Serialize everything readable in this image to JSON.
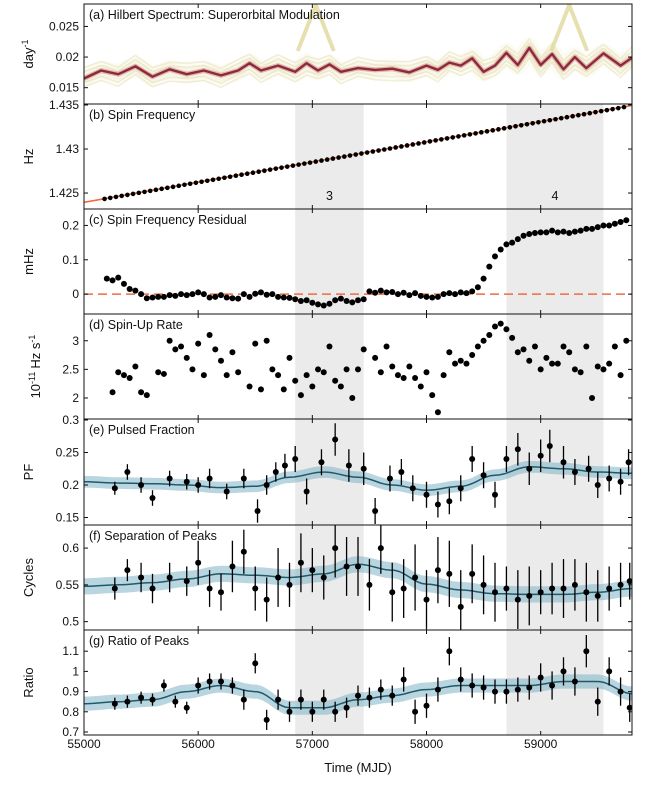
{
  "colors": {
    "background": "#ffffff",
    "shaded_interval": "#ebebeb",
    "points": "#000000",
    "fit_line": "#ef6c3f",
    "gp_line": "#1d5a6b",
    "gp_band": "#7fb3c6",
    "hilbert_track": "#8c2a3c",
    "hilbert_glow": "#e0d89a"
  },
  "chart_data": {
    "type": "scatter",
    "xlabel": "Time (MJD)",
    "xlim": [
      55000,
      59800
    ],
    "xticks": [
      "55000",
      "56000",
      "57000",
      "58000",
      "59000"
    ],
    "shaded_intervals": [
      {
        "label": "3",
        "range": [
          56850,
          57450
        ]
      },
      {
        "label": "4",
        "range": [
          58700,
          59550
        ]
      }
    ],
    "panels": [
      {
        "id": "a",
        "type": "heatmap",
        "title": "(a) Hilbert Spectrum: Superorbital Modulation",
        "ylabel": "day",
        "ylabel_sup": "-1",
        "ylim": [
          0.0125,
          0.0285
        ],
        "yticks": [
          "0.015",
          "0.02",
          "0.025"
        ],
        "track": {
          "x": [
            55000,
            55150,
            55300,
            55450,
            55600,
            55750,
            55900,
            56050,
            56200,
            56350,
            56450,
            56550,
            56700,
            56850,
            56950,
            57050,
            57150,
            57250,
            57400,
            57550,
            57700,
            57850,
            58000,
            58100,
            58200,
            58300,
            58400,
            58500,
            58600,
            58700,
            58800,
            58900,
            59000,
            59100,
            59200,
            59300,
            59400,
            59550,
            59700,
            59800
          ],
          "y": [
            0.0165,
            0.0178,
            0.0172,
            0.0185,
            0.0168,
            0.018,
            0.0172,
            0.0178,
            0.017,
            0.0178,
            0.019,
            0.0178,
            0.0186,
            0.0176,
            0.019,
            0.0178,
            0.0188,
            0.0176,
            0.0182,
            0.0179,
            0.0181,
            0.0175,
            0.0186,
            0.0179,
            0.0191,
            0.0186,
            0.0198,
            0.0176,
            0.0186,
            0.0207,
            0.0187,
            0.0215,
            0.0187,
            0.0205,
            0.018,
            0.02,
            0.0182,
            0.0206,
            0.0186,
            0.0199
          ]
        },
        "spikes": [
          {
            "x": 57030,
            "y": 0.0285
          },
          {
            "x": 59250,
            "y": 0.0285
          }
        ]
      },
      {
        "id": "b",
        "type": "scatter",
        "title": "(b) Spin Frequency",
        "ylabel": "Hz",
        "ylim": [
          1.4233,
          1.435
        ],
        "yticks": [
          "1.425",
          "1.43",
          "1.435"
        ],
        "fit_line": {
          "x": [
            55000,
            59800
          ],
          "y": [
            1.42395,
            1.43495
          ]
        },
        "x_start": 55180,
        "x_step": 50,
        "n_points": 92,
        "y_start": 1.42433,
        "slope_per_mjd": 2.2917e-06
      },
      {
        "id": "c",
        "type": "scatter",
        "title": "(c) Spin Frequency Residual",
        "ylabel": "mHz",
        "ylim": [
          -0.055,
          0.245
        ],
        "yticks": [
          "0",
          "0.1",
          "0.2"
        ],
        "zero_line": 0,
        "x": [
          55200,
          55250,
          55300,
          55350,
          55400,
          55450,
          55500,
          55550,
          55600,
          55650,
          55700,
          55750,
          55800,
          55850,
          55900,
          55950,
          56000,
          56050,
          56100,
          56150,
          56200,
          56250,
          56300,
          56350,
          56400,
          56450,
          56500,
          56550,
          56600,
          56650,
          56700,
          56750,
          56800,
          56850,
          56900,
          56950,
          57000,
          57050,
          57100,
          57150,
          57200,
          57250,
          57300,
          57350,
          57400,
          57450,
          57500,
          57550,
          57600,
          57650,
          57700,
          57750,
          57800,
          57850,
          57900,
          57950,
          58000,
          58050,
          58100,
          58150,
          58200,
          58250,
          58300,
          58350,
          58400,
          58450,
          58500,
          58550,
          58600,
          58650,
          58700,
          58750,
          58800,
          58850,
          58900,
          58950,
          59000,
          59050,
          59100,
          59150,
          59200,
          59250,
          59300,
          59350,
          59400,
          59450,
          59500,
          59550,
          59600,
          59650,
          59700,
          59750
        ],
        "y": [
          0.045,
          0.04,
          0.048,
          0.03,
          0.015,
          0.01,
          0.0,
          -0.012,
          -0.01,
          -0.008,
          -0.008,
          -0.003,
          -0.005,
          0.0,
          -0.003,
          0.0,
          0.005,
          0.0,
          -0.01,
          -0.008,
          -0.003,
          -0.01,
          -0.012,
          -0.013,
          0.0,
          -0.008,
          0.001,
          0.005,
          -0.002,
          0.0,
          -0.008,
          -0.01,
          -0.011,
          -0.015,
          -0.02,
          -0.018,
          -0.025,
          -0.03,
          -0.033,
          -0.028,
          -0.018,
          -0.013,
          -0.02,
          -0.024,
          -0.018,
          -0.015,
          0.008,
          0.004,
          0.01,
          0.005,
          0.006,
          0.0,
          0.004,
          -0.003,
          0.003,
          -0.005,
          -0.008,
          -0.01,
          -0.008,
          0.0,
          0.003,
          0.0,
          0.005,
          0.003,
          0.008,
          0.02,
          0.045,
          0.08,
          0.11,
          0.13,
          0.145,
          0.15,
          0.16,
          0.17,
          0.175,
          0.178,
          0.18,
          0.18,
          0.185,
          0.18,
          0.182,
          0.178,
          0.182,
          0.185,
          0.19,
          0.19,
          0.195,
          0.2,
          0.2,
          0.205,
          0.21,
          0.215
        ]
      },
      {
        "id": "d",
        "type": "scatter",
        "title": "(d) Spin-Up Rate",
        "ylabel": "10",
        "ylabel_sup": "-11",
        "ylabel_unit": "Hz s",
        "ylabel_unit_sup": "-1",
        "ylim": [
          1.65,
          3.45
        ],
        "yticks": [
          "2",
          "2.5",
          "3"
        ],
        "x": [
          55250,
          55300,
          55350,
          55400,
          55450,
          55500,
          55550,
          55650,
          55700,
          55750,
          55800,
          55850,
          55900,
          55950,
          56000,
          56050,
          56100,
          56150,
          56200,
          56250,
          56300,
          56350,
          56450,
          56500,
          56550,
          56600,
          56650,
          56700,
          56750,
          56800,
          56850,
          56900,
          56950,
          57000,
          57050,
          57100,
          57150,
          57200,
          57250,
          57300,
          57350,
          57400,
          57450,
          57550,
          57600,
          57650,
          57700,
          57750,
          57800,
          57850,
          57900,
          57950,
          58000,
          58050,
          58100,
          58150,
          58200,
          58250,
          58300,
          58350,
          58400,
          58450,
          58500,
          58550,
          58600,
          58650,
          58700,
          58750,
          58800,
          58850,
          58900,
          58950,
          59000,
          59050,
          59100,
          59150,
          59200,
          59250,
          59300,
          59350,
          59400,
          59450,
          59500,
          59550,
          59600,
          59650,
          59700,
          59750
        ],
        "y": [
          2.1,
          2.45,
          2.4,
          2.35,
          2.55,
          2.1,
          2.05,
          2.45,
          2.42,
          3.0,
          2.85,
          2.9,
          2.7,
          2.5,
          2.95,
          2.4,
          3.1,
          2.85,
          2.65,
          2.4,
          2.8,
          2.45,
          2.2,
          2.95,
          2.15,
          3.0,
          2.5,
          2.4,
          2.15,
          2.7,
          2.3,
          2.05,
          2.4,
          2.2,
          2.5,
          2.45,
          2.9,
          2.3,
          2.2,
          2.5,
          2.0,
          2.5,
          2.85,
          2.7,
          2.45,
          2.9,
          2.55,
          2.4,
          2.35,
          2.55,
          2.35,
          2.2,
          2.45,
          2.05,
          1.75,
          2.4,
          2.8,
          2.6,
          2.65,
          2.6,
          2.75,
          2.9,
          3.0,
          3.1,
          3.25,
          3.3,
          3.2,
          3.05,
          2.8,
          2.85,
          2.65,
          2.9,
          2.5,
          2.7,
          2.6,
          2.6,
          2.9,
          2.8,
          2.5,
          2.45,
          2.9,
          2.0,
          2.55,
          2.5,
          2.6,
          2.9,
          2.4,
          3.0
        ]
      },
      {
        "id": "e",
        "type": "scatter",
        "title": "(e) Pulsed Fraction",
        "ylabel": "PF",
        "ylim": [
          0.14,
          0.3
        ],
        "yticks": [
          "0.15",
          "0.2",
          "0.25",
          "0.3"
        ],
        "x": [
          55270,
          55380,
          55500,
          55600,
          55750,
          55900,
          56000,
          56100,
          56250,
          56400,
          56520,
          56600,
          56680,
          56760,
          56850,
          56950,
          57080,
          57200,
          57320,
          57450,
          57550,
          57680,
          57780,
          57880,
          58000,
          58100,
          58200,
          58300,
          58400,
          58500,
          58600,
          58700,
          58800,
          58900,
          59000,
          59080,
          59200,
          59300,
          59420,
          59500,
          59600,
          59700,
          59770
        ],
        "y": [
          0.195,
          0.22,
          0.2,
          0.18,
          0.21,
          0.205,
          0.2,
          0.21,
          0.19,
          0.21,
          0.16,
          0.2,
          0.22,
          0.23,
          0.24,
          0.19,
          0.235,
          0.27,
          0.23,
          0.225,
          0.16,
          0.21,
          0.22,
          0.195,
          0.185,
          0.17,
          0.175,
          0.195,
          0.24,
          0.215,
          0.185,
          0.24,
          0.255,
          0.225,
          0.245,
          0.26,
          0.235,
          0.22,
          0.225,
          0.2,
          0.21,
          0.205,
          0.235
        ],
        "err": [
          0.01,
          0.012,
          0.012,
          0.012,
          0.012,
          0.012,
          0.012,
          0.015,
          0.012,
          0.015,
          0.018,
          0.015,
          0.015,
          0.018,
          0.02,
          0.02,
          0.02,
          0.025,
          0.025,
          0.025,
          0.02,
          0.02,
          0.02,
          0.02,
          0.02,
          0.02,
          0.02,
          0.02,
          0.02,
          0.02,
          0.02,
          0.02,
          0.025,
          0.025,
          0.025,
          0.025,
          0.025,
          0.02,
          0.02,
          0.02,
          0.02,
          0.02,
          0.02
        ],
        "gp_x": [
          55000,
          55300,
          55600,
          55900,
          56200,
          56500,
          56800,
          57100,
          57400,
          57700,
          58000,
          58300,
          58600,
          58900,
          59200,
          59500,
          59800
        ],
        "gp_y": [
          0.205,
          0.203,
          0.202,
          0.2,
          0.196,
          0.198,
          0.212,
          0.22,
          0.212,
          0.2,
          0.192,
          0.198,
          0.215,
          0.228,
          0.225,
          0.22,
          0.218
        ],
        "gp_sigma": 0.009
      },
      {
        "id": "f",
        "type": "scatter",
        "title": "(f) Separation of Peaks",
        "ylabel": "Cycles",
        "ylim": [
          0.49,
          0.63
        ],
        "yticks": [
          "0.5",
          "0.55",
          "0.6"
        ],
        "x": [
          55270,
          55380,
          55500,
          55600,
          55750,
          55900,
          56000,
          56100,
          56200,
          56300,
          56400,
          56500,
          56600,
          56700,
          56800,
          56900,
          57000,
          57100,
          57200,
          57300,
          57400,
          57500,
          57600,
          57700,
          57800,
          57900,
          58000,
          58100,
          58200,
          58300,
          58400,
          58500,
          58600,
          58700,
          58800,
          58900,
          59000,
          59100,
          59200,
          59300,
          59400,
          59500,
          59600,
          59700,
          59780
        ],
        "y": [
          0.545,
          0.57,
          0.56,
          0.545,
          0.56,
          0.555,
          0.58,
          0.545,
          0.54,
          0.575,
          0.595,
          0.545,
          0.53,
          0.56,
          0.55,
          0.58,
          0.57,
          0.56,
          0.6,
          0.575,
          0.575,
          0.55,
          0.6,
          0.54,
          0.545,
          0.56,
          0.53,
          0.57,
          0.565,
          0.52,
          0.565,
          0.55,
          0.54,
          0.545,
          0.53,
          0.535,
          0.54,
          0.545,
          0.545,
          0.55,
          0.54,
          0.535,
          0.545,
          0.55,
          0.555
        ],
        "err": [
          0.015,
          0.015,
          0.02,
          0.02,
          0.02,
          0.02,
          0.03,
          0.025,
          0.025,
          0.035,
          0.03,
          0.03,
          0.03,
          0.04,
          0.03,
          0.04,
          0.03,
          0.03,
          0.04,
          0.04,
          0.04,
          0.035,
          0.035,
          0.04,
          0.04,
          0.045,
          0.04,
          0.045,
          0.045,
          0.05,
          0.04,
          0.04,
          0.04,
          0.03,
          0.04,
          0.04,
          0.03,
          0.035,
          0.04,
          0.035,
          0.04,
          0.035,
          0.03,
          0.03,
          0.025
        ],
        "gp_x": [
          55000,
          55300,
          55600,
          55900,
          56200,
          56500,
          56800,
          57100,
          57400,
          57700,
          58000,
          58300,
          58600,
          58900,
          59200,
          59500,
          59800
        ],
        "gp_y": [
          0.548,
          0.55,
          0.553,
          0.558,
          0.565,
          0.563,
          0.56,
          0.565,
          0.578,
          0.57,
          0.551,
          0.543,
          0.538,
          0.537,
          0.537,
          0.54,
          0.545
        ],
        "gp_sigma": 0.011
      },
      {
        "id": "g",
        "type": "scatter",
        "title": "(g) Ratio of Peaks",
        "ylabel": "Ratio",
        "ylim": [
          0.69,
          1.2
        ],
        "yticks": [
          "0.7",
          "0.8",
          "0.9",
          "1",
          "1.1"
        ],
        "x": [
          55270,
          55380,
          55500,
          55600,
          55700,
          55800,
          55900,
          56000,
          56100,
          56200,
          56300,
          56400,
          56500,
          56600,
          56700,
          56800,
          56900,
          57000,
          57100,
          57200,
          57300,
          57400,
          57500,
          57600,
          57700,
          57800,
          57900,
          58000,
          58100,
          58200,
          58300,
          58400,
          58500,
          58600,
          58700,
          58800,
          58900,
          59000,
          59100,
          59200,
          59300,
          59400,
          59500,
          59600,
          59700,
          59780
        ],
        "y": [
          0.84,
          0.85,
          0.87,
          0.86,
          0.93,
          0.85,
          0.82,
          0.93,
          0.95,
          0.95,
          0.93,
          0.86,
          1.04,
          0.76,
          0.86,
          0.8,
          0.86,
          0.8,
          0.86,
          0.8,
          0.82,
          0.88,
          0.87,
          0.91,
          0.88,
          0.96,
          0.8,
          0.83,
          0.91,
          1.1,
          0.96,
          0.93,
          0.92,
          0.9,
          0.9,
          0.91,
          0.92,
          0.97,
          0.93,
          1.0,
          0.95,
          1.1,
          0.85,
          1.0,
          0.9,
          0.82
        ],
        "err": [
          0.03,
          0.03,
          0.03,
          0.03,
          0.03,
          0.03,
          0.03,
          0.04,
          0.04,
          0.04,
          0.04,
          0.05,
          0.05,
          0.05,
          0.05,
          0.05,
          0.05,
          0.05,
          0.05,
          0.05,
          0.05,
          0.05,
          0.05,
          0.05,
          0.05,
          0.06,
          0.06,
          0.06,
          0.06,
          0.07,
          0.06,
          0.06,
          0.06,
          0.06,
          0.06,
          0.06,
          0.06,
          0.07,
          0.07,
          0.07,
          0.07,
          0.08,
          0.07,
          0.07,
          0.07,
          0.07
        ],
        "gp_x": [
          55000,
          55300,
          55600,
          55900,
          56200,
          56500,
          56800,
          57100,
          57400,
          57700,
          58000,
          58300,
          58600,
          58900,
          59200,
          59500,
          59800
        ],
        "gp_y": [
          0.84,
          0.85,
          0.86,
          0.9,
          0.93,
          0.9,
          0.82,
          0.82,
          0.86,
          0.88,
          0.91,
          0.93,
          0.93,
          0.93,
          0.95,
          0.95,
          0.89
        ],
        "gp_sigma": 0.035
      }
    ]
  }
}
